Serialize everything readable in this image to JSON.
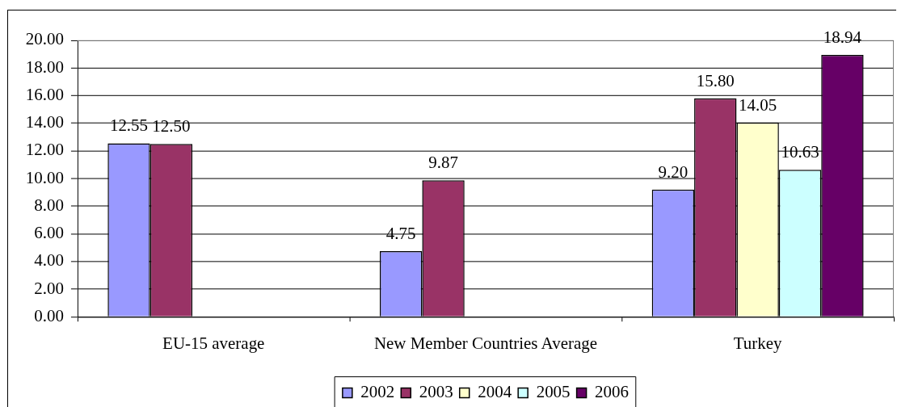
{
  "chart_data": {
    "type": "bar",
    "categories": [
      "EU-15 average",
      "New Member Countries Average",
      "Turkey"
    ],
    "series": [
      {
        "name": "2002",
        "color": "#9999ff",
        "values": [
          12.55,
          4.75,
          9.2
        ],
        "value_labels": [
          "12.55",
          "4.75",
          "9.20"
        ]
      },
      {
        "name": "2003",
        "color": "#993366",
        "values": [
          12.5,
          9.87,
          15.8
        ],
        "value_labels": [
          "12.50",
          "9.87",
          "15.80"
        ]
      },
      {
        "name": "2004",
        "color": "#ffffcc",
        "values": [
          null,
          null,
          14.05
        ],
        "value_labels": [
          null,
          null,
          "14.05"
        ]
      },
      {
        "name": "2005",
        "color": "#ccffff",
        "values": [
          null,
          null,
          10.63
        ],
        "value_labels": [
          null,
          null,
          "10.63"
        ]
      },
      {
        "name": "2006",
        "color": "#660066",
        "values": [
          null,
          null,
          18.94
        ],
        "value_labels": [
          null,
          null,
          "18.94"
        ]
      }
    ],
    "ylim": [
      0,
      20
    ],
    "yticks": [
      {
        "value": 0,
        "label": "0.00"
      },
      {
        "value": 2,
        "label": "2.00"
      },
      {
        "value": 4,
        "label": "4.00"
      },
      {
        "value": 6,
        "label": "6.00"
      },
      {
        "value": 8,
        "label": "8.00"
      },
      {
        "value": 10,
        "label": "10.00"
      },
      {
        "value": 12,
        "label": "12.00"
      },
      {
        "value": 14,
        "label": "14.00"
      },
      {
        "value": 16,
        "label": "16.00"
      },
      {
        "value": 18,
        "label": "18.00"
      },
      {
        "value": 20,
        "label": "20.00"
      }
    ],
    "grid": "y",
    "legend": "bottom"
  }
}
